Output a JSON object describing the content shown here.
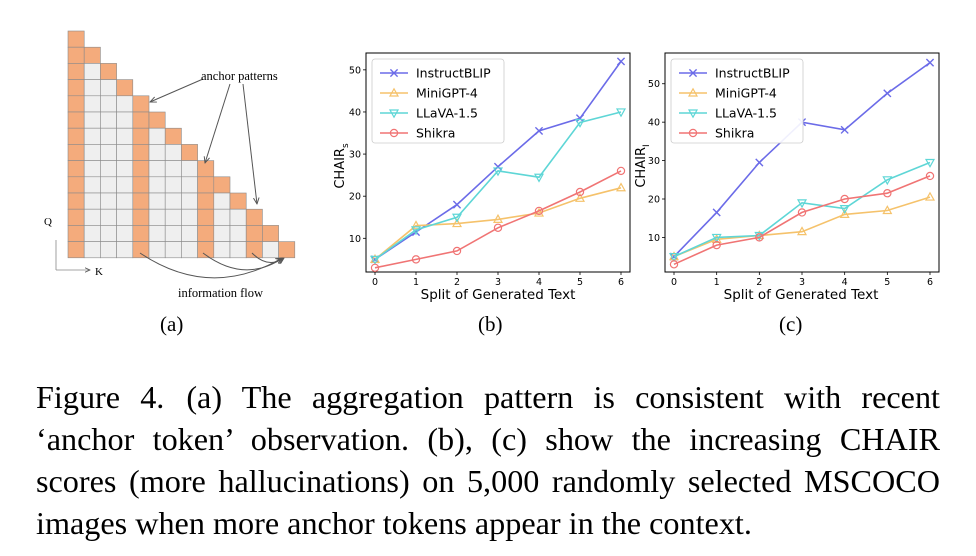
{
  "panel_a": {
    "anchor_label": "anchor patterns",
    "flow_label": "information flow",
    "q_label": "Q",
    "k_label": "K",
    "sublabel": "(a)"
  },
  "chart_data": [
    {
      "type": "line",
      "sublabel": "(b)",
      "xlabel": "Split of Generated Text",
      "ylabel": "CHAIRS",
      "ylabel_main": "CHAIR",
      "ylabel_sub": "s",
      "x": [
        0,
        1,
        2,
        3,
        4,
        5,
        6
      ],
      "xticks": [
        "0",
        "1",
        "2",
        "3",
        "4",
        "5",
        "6"
      ],
      "yticks": [
        "10",
        "20",
        "30",
        "40",
        "50"
      ],
      "ylim": [
        2,
        54
      ],
      "legend_position": "top-left",
      "grid": false,
      "series": [
        {
          "name": "InstructBLIP",
          "color": "#6b6be8",
          "marker": "x",
          "values": [
            5,
            11.5,
            18,
            27,
            35.5,
            38.5,
            52
          ]
        },
        {
          "name": "MiniGPT-4",
          "color": "#f5c26b",
          "marker": "triangle-up",
          "values": [
            5,
            13,
            13.5,
            14.5,
            16,
            19.5,
            22
          ]
        },
        {
          "name": "LLaVA-1.5",
          "color": "#5ed6d6",
          "marker": "triangle-down",
          "values": [
            5,
            12,
            15,
            26,
            24.5,
            37.5,
            40
          ]
        },
        {
          "name": "Shikra",
          "color": "#f07474",
          "marker": "circle",
          "values": [
            3,
            5,
            7,
            12.5,
            16.5,
            21,
            26
          ]
        }
      ]
    },
    {
      "type": "line",
      "sublabel": "(c)",
      "xlabel": "Split of Generated Text",
      "ylabel": "CHAIRI",
      "ylabel_main": "CHAIR",
      "ylabel_sub": "I",
      "x": [
        0,
        1,
        2,
        3,
        4,
        5,
        6
      ],
      "xticks": [
        "0",
        "1",
        "2",
        "3",
        "4",
        "5",
        "6"
      ],
      "yticks": [
        "10",
        "20",
        "30",
        "40",
        "50"
      ],
      "ylim": [
        1,
        58
      ],
      "legend_position": "top-left",
      "grid": false,
      "series": [
        {
          "name": "InstructBLIP",
          "color": "#6b6be8",
          "marker": "x",
          "values": [
            5,
            16.5,
            29.5,
            40,
            38,
            47.5,
            55.5
          ]
        },
        {
          "name": "MiniGPT-4",
          "color": "#f5c26b",
          "marker": "triangle-up",
          "values": [
            5,
            9.5,
            10.5,
            11.5,
            16,
            17,
            20.5
          ]
        },
        {
          "name": "LLaVA-1.5",
          "color": "#5ed6d6",
          "marker": "triangle-down",
          "values": [
            5,
            10,
            10.5,
            19,
            17.5,
            25,
            29.5
          ]
        },
        {
          "name": "Shikra",
          "color": "#f07474",
          "marker": "circle",
          "values": [
            3,
            8,
            10,
            16.5,
            20,
            21.5,
            26
          ]
        }
      ]
    }
  ],
  "caption": {
    "label": "Figure 4.",
    "text": "(a) The aggregation pattern is consistent with recent ‘anchor token’ observation. (b), (c) show the increasing CHAIR scores (more hallucinations) on 5,000 randomly selected MSCOCO images when more anchor tokens appear in the context."
  }
}
